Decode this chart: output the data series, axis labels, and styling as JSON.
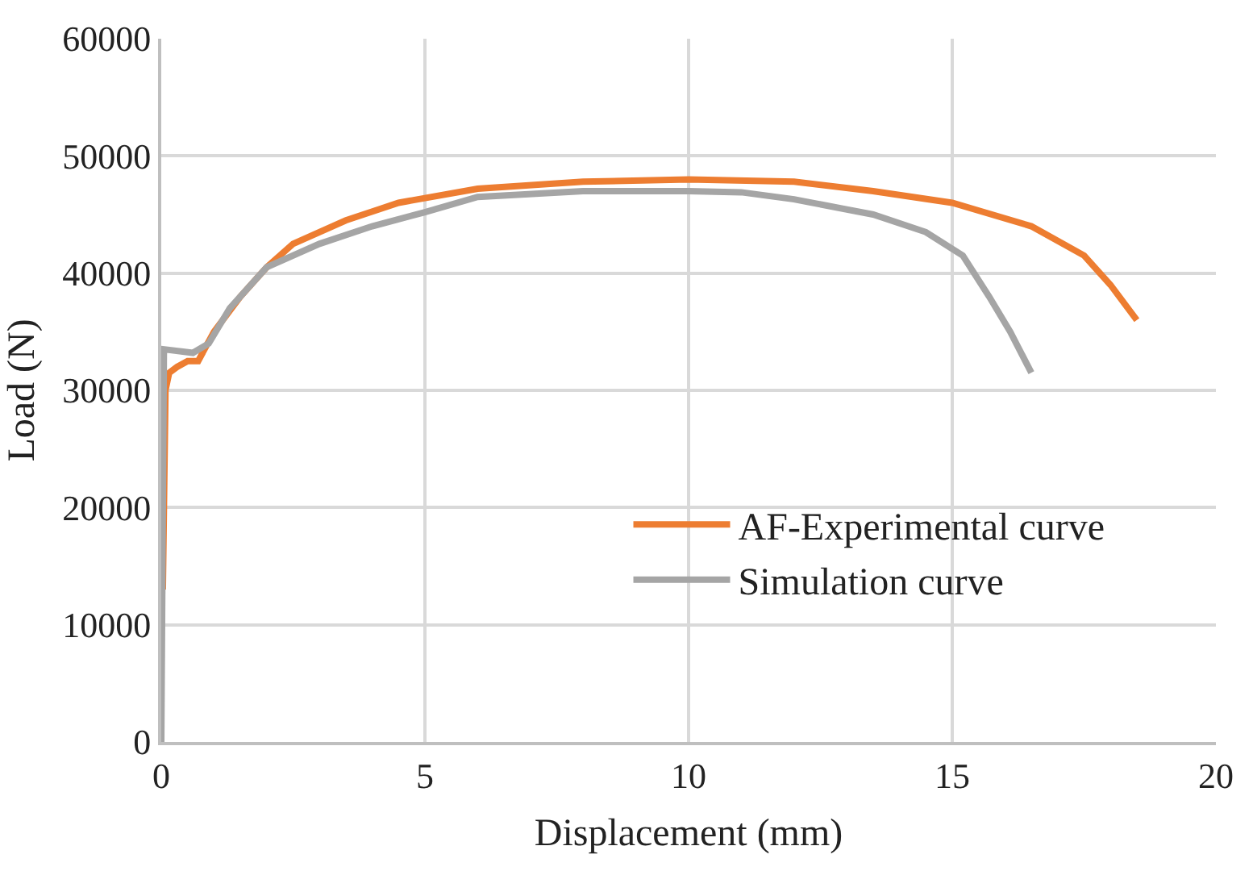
{
  "chart_data": {
    "type": "line",
    "xlabel": "Displacement (mm)",
    "ylabel": "Load (N)",
    "xlim": [
      0,
      20
    ],
    "xticks": [
      0,
      5,
      10,
      15,
      20
    ],
    "ylim": [
      0,
      60000
    ],
    "yticks": [
      0,
      10000,
      20000,
      30000,
      40000,
      50000,
      60000
    ],
    "grid": true,
    "legend": "bottom right",
    "marker": "none",
    "line_style": "solid",
    "series": [
      {
        "name": "AF-Experimental curve",
        "color": "#ed7d31",
        "x": [
          0.03,
          0.08,
          0.15,
          0.3,
          0.5,
          0.7,
          1.0,
          1.5,
          2.0,
          2.5,
          3.5,
          4.5,
          6,
          8,
          10,
          12,
          13.5,
          15,
          16.5,
          17.5,
          18.0,
          18.5
        ],
        "values": [
          13000,
          30000,
          31500,
          32000,
          32500,
          32500,
          35000,
          38000,
          40500,
          42500,
          44500,
          46000,
          47200,
          47800,
          48000,
          47800,
          47000,
          46000,
          44000,
          41500,
          39000,
          36000
        ]
      },
      {
        "name": "Simulation curve",
        "color": "#a5a5a5",
        "x": [
          0.0,
          0.05,
          0.6,
          0.9,
          1.3,
          2,
          3,
          4,
          5,
          6,
          8,
          10,
          11,
          12,
          13.5,
          14.5,
          15.2,
          15.7,
          16.1,
          16.5
        ],
        "values": [
          0,
          33500,
          33200,
          34000,
          37000,
          40500,
          42500,
          44000,
          45200,
          46500,
          47000,
          47000,
          46900,
          46300,
          45000,
          43500,
          41500,
          38000,
          35000,
          31500
        ]
      }
    ]
  }
}
